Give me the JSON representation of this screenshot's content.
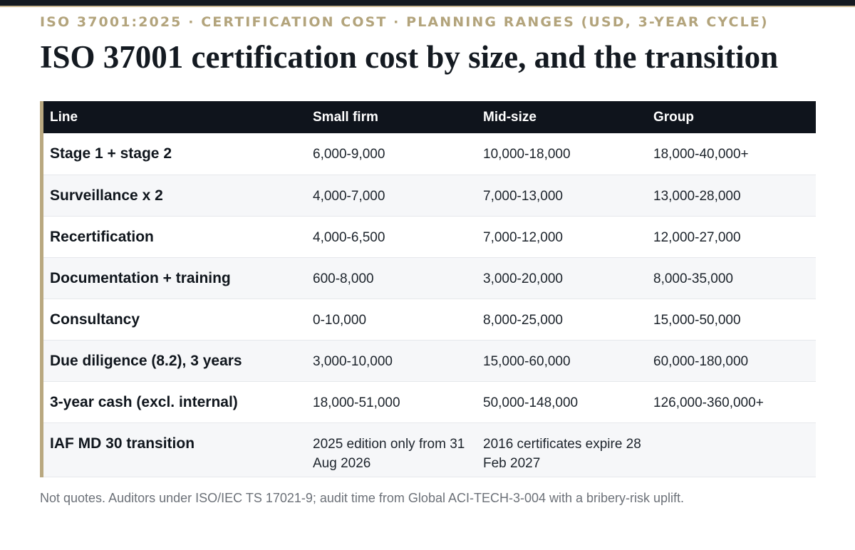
{
  "header": {
    "kicker": "ISO 37001:2025 · CERTIFICATION COST · PLANNING RANGES (USD, 3-YEAR CYCLE)",
    "title": "ISO 37001 certification cost by size, and the transition"
  },
  "table": {
    "columns": [
      "Line",
      "Small firm",
      "Mid-size",
      "Group"
    ],
    "rows": [
      {
        "line": "Stage 1 + stage 2",
        "small": "6,000-9,000",
        "mid": "10,000-18,000",
        "group": "18,000-40,000+"
      },
      {
        "line": "Surveillance x 2",
        "small": "4,000-7,000",
        "mid": "7,000-13,000",
        "group": "13,000-28,000"
      },
      {
        "line": "Recertification",
        "small": "4,000-6,500",
        "mid": "7,000-12,000",
        "group": "12,000-27,000"
      },
      {
        "line": "Documentation + training",
        "small": "600-8,000",
        "mid": "3,000-20,000",
        "group": "8,000-35,000"
      },
      {
        "line": "Consultancy",
        "small": "0-10,000",
        "mid": "8,000-25,000",
        "group": "15,000-50,000"
      },
      {
        "line": "Due diligence (8.2), 3 years",
        "small": "3,000-10,000",
        "mid": "15,000-60,000",
        "group": "60,000-180,000"
      },
      {
        "line": "3-year cash (excl. internal)",
        "small": "18,000-51,000",
        "mid": "50,000-148,000",
        "group": "126,000-360,000+"
      },
      {
        "line": "IAF MD 30 transition",
        "small": "2025 edition only from 31 Aug 2026",
        "mid": "2016 certificates expire 28 Feb 2027",
        "group": ""
      }
    ]
  },
  "footnote": "Not quotes. Auditors under ISO/IEC TS 17021-9; audit time from Global ACI-TECH-3-004 with a bribery-risk uplift.",
  "colors": {
    "accent": "#b3a47c",
    "header_bg": "#0f141c",
    "zebra": "#f6f7f9"
  }
}
